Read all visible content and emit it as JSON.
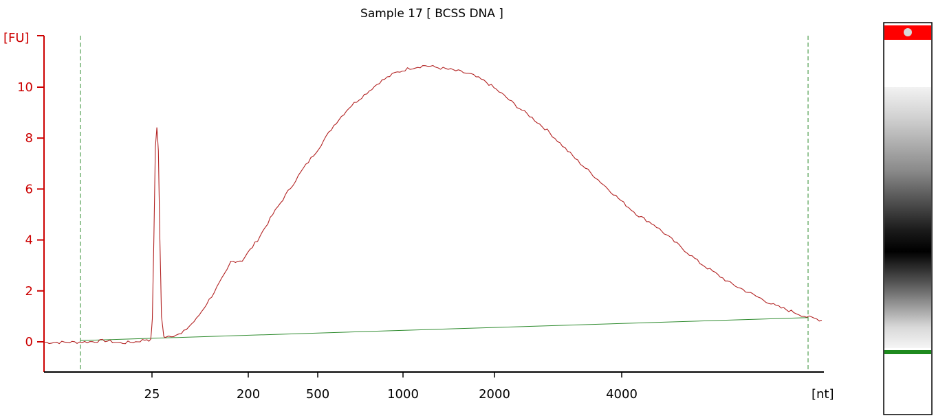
{
  "chart_data": {
    "type": "line",
    "title": "Sample 17  [ BCSS DNA ]",
    "ylabel": "[FU]",
    "xlabel": "[nt]",
    "ylim": [
      -1,
      11.7
    ],
    "yticks": [
      0,
      2,
      4,
      6,
      8,
      10
    ],
    "x_tick_labels": [
      "25",
      "200",
      "500",
      "1000",
      "2000",
      "4000"
    ],
    "grid": false,
    "colors": {
      "axis_y": "#cc0000",
      "trace": "#b22222",
      "baseline": "#2e8b2e",
      "markers": "#2e8b2e",
      "axis_x": "#000000"
    },
    "series": [
      {
        "points": [
          [
            0.0,
            -0.02
          ],
          [
            0.03,
            -0.02
          ],
          [
            0.06,
            0.0
          ],
          [
            0.08,
            0.05
          ],
          [
            0.1,
            -0.05
          ],
          [
            0.12,
            0.0
          ],
          [
            0.135,
            0.1
          ],
          [
            0.14,
            0.05
          ],
          [
            0.142,
            0.9
          ],
          [
            0.144,
            4.0
          ],
          [
            0.146,
            7.6
          ],
          [
            0.148,
            8.45
          ],
          [
            0.15,
            7.5
          ],
          [
            0.152,
            4.0
          ],
          [
            0.154,
            1.0
          ],
          [
            0.157,
            0.2
          ],
          [
            0.16,
            0.22
          ],
          [
            0.18,
            0.3
          ],
          [
            0.2,
            0.9
          ],
          [
            0.22,
            1.8
          ],
          [
            0.24,
            2.8
          ],
          [
            0.245,
            3.15
          ],
          [
            0.26,
            3.2
          ],
          [
            0.28,
            4.0
          ],
          [
            0.3,
            5.0
          ],
          [
            0.32,
            5.9
          ],
          [
            0.34,
            6.8
          ],
          [
            0.36,
            7.6
          ],
          [
            0.38,
            8.5
          ],
          [
            0.4,
            9.2
          ],
          [
            0.42,
            9.7
          ],
          [
            0.44,
            10.2
          ],
          [
            0.46,
            10.55
          ],
          [
            0.48,
            10.75
          ],
          [
            0.5,
            10.85
          ],
          [
            0.52,
            10.75
          ],
          [
            0.54,
            10.65
          ],
          [
            0.56,
            10.5
          ],
          [
            0.58,
            10.2
          ],
          [
            0.6,
            9.75
          ],
          [
            0.62,
            9.25
          ],
          [
            0.64,
            8.8
          ],
          [
            0.66,
            8.3
          ],
          [
            0.68,
            7.7
          ],
          [
            0.7,
            7.1
          ],
          [
            0.72,
            6.55
          ],
          [
            0.74,
            6.0
          ],
          [
            0.76,
            5.45
          ],
          [
            0.78,
            4.95
          ],
          [
            0.8,
            4.6
          ],
          [
            0.82,
            4.1
          ],
          [
            0.84,
            3.6
          ],
          [
            0.86,
            3.1
          ],
          [
            0.88,
            2.7
          ],
          [
            0.9,
            2.3
          ],
          [
            0.92,
            2.0
          ],
          [
            0.94,
            1.7
          ],
          [
            0.96,
            1.4
          ],
          [
            0.98,
            1.2
          ],
          [
            1.0,
            0.98
          ],
          [
            1.02,
            0.85
          ]
        ]
      }
    ],
    "baseline": {
      "from": 0.04,
      "to": 0.95
    }
  }
}
